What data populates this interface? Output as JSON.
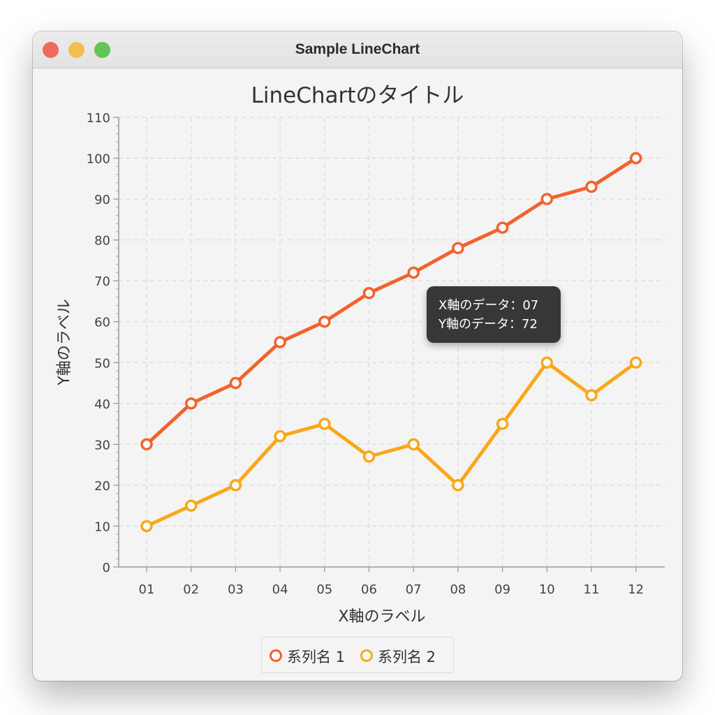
{
  "window": {
    "title": "Sample LineChart",
    "buttons": [
      "close",
      "minimize",
      "zoom"
    ],
    "button_colors": {
      "close": "#ee6a5f",
      "minimize": "#f5bf4f",
      "zoom": "#62c554"
    }
  },
  "tooltip": {
    "line1": "X軸のデータ：07",
    "line2": "Y軸のデータ：72"
  },
  "chart_data": {
    "type": "line",
    "title": "LineChartのタイトル",
    "xlabel": "X軸のラベル",
    "ylabel": "Y軸のラベル",
    "categories": [
      "01",
      "02",
      "03",
      "04",
      "05",
      "06",
      "07",
      "08",
      "09",
      "10",
      "11",
      "12"
    ],
    "ylim": [
      0,
      110
    ],
    "yticks": [
      0,
      10,
      20,
      30,
      40,
      50,
      60,
      70,
      80,
      90,
      100,
      110
    ],
    "grid": true,
    "legend_position": "bottom",
    "series": [
      {
        "name": "系列名 1",
        "color": "#f3622d",
        "values": [
          30,
          40,
          45,
          55,
          60,
          67,
          72,
          78,
          83,
          90,
          93,
          100
        ]
      },
      {
        "name": "系列名 2",
        "color": "#fba71b",
        "values": [
          10,
          15,
          20,
          32,
          35,
          27,
          30,
          20,
          35,
          50,
          42,
          50
        ]
      }
    ]
  }
}
